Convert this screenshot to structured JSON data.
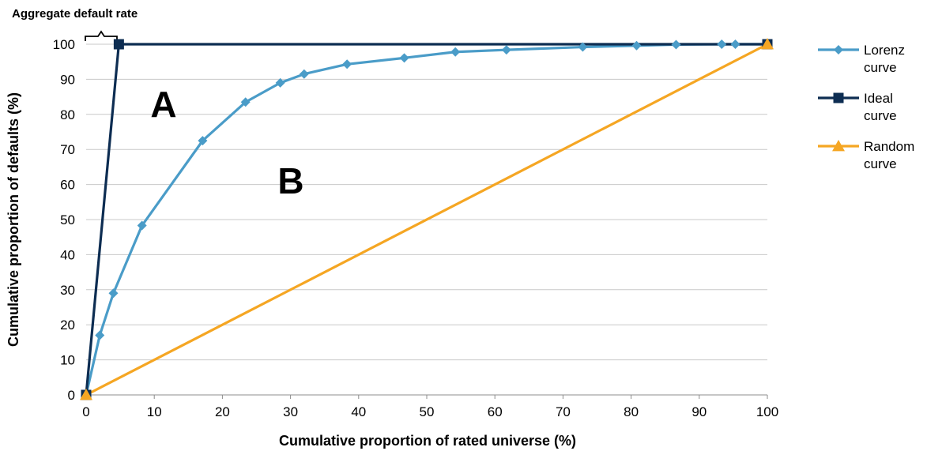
{
  "chart_data": {
    "type": "line",
    "annotation": "Aggregate default rate",
    "region_labels": [
      "A",
      "B"
    ],
    "xlabel": "Cumulative proportion of rated universe (%)",
    "ylabel": "Cumulative proportion of defaults (%)",
    "xlim": [
      0,
      100
    ],
    "ylim": [
      0,
      100
    ],
    "x_ticks": [
      0,
      10,
      20,
      30,
      40,
      50,
      60,
      70,
      80,
      90,
      100
    ],
    "y_ticks": [
      0,
      10,
      20,
      30,
      40,
      50,
      60,
      70,
      80,
      90,
      100
    ],
    "grid": "horizontal",
    "legend_position": "right",
    "series": [
      {
        "name": "Lorenz curve",
        "color": "#4a9cc8",
        "marker": "diamond",
        "points": [
          [
            0,
            0
          ],
          [
            2,
            17
          ],
          [
            4,
            29
          ],
          [
            8.2,
            48.3
          ],
          [
            17.1,
            72.5
          ],
          [
            23.4,
            83.5
          ],
          [
            28.5,
            89
          ],
          [
            32,
            91.5
          ],
          [
            38.3,
            94.3
          ],
          [
            46.7,
            96.1
          ],
          [
            54.2,
            97.8
          ],
          [
            61.7,
            98.4
          ],
          [
            72.9,
            99.2
          ],
          [
            80.8,
            99.6
          ],
          [
            86.6,
            99.9
          ],
          [
            93.3,
            100
          ],
          [
            95.3,
            100
          ],
          [
            100,
            100
          ]
        ]
      },
      {
        "name": "Ideal curve",
        "color": "#0d2d52",
        "marker": "square",
        "points": [
          [
            0,
            0
          ],
          [
            4.8,
            100
          ],
          [
            100,
            100
          ]
        ]
      },
      {
        "name": "Random curve",
        "color": "#f5a623",
        "marker": "triangle",
        "points": [
          [
            0,
            0
          ],
          [
            100,
            100
          ]
        ]
      }
    ]
  }
}
